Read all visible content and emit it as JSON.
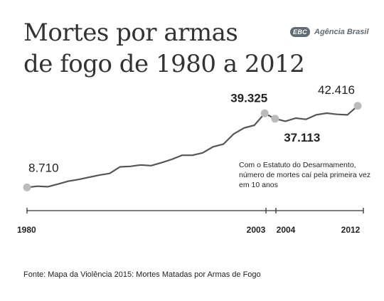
{
  "header": {
    "title_line1": "Mortes por armas",
    "title_line2": "de fogo de 1980 a 2012"
  },
  "logo": {
    "mark": "EBC",
    "name": "Agência Brasil"
  },
  "colors": {
    "line": "#555555",
    "dot": "#bbbbbb",
    "axis": "#333333",
    "text": "#222222",
    "logo": "#5f6b75"
  },
  "chart_data": {
    "type": "line",
    "title": "Mortes por armas de fogo de 1980 a 2012",
    "x": [
      1980,
      1981,
      1982,
      1983,
      1984,
      1985,
      1986,
      1987,
      1988,
      1989,
      1990,
      1991,
      1992,
      1993,
      1994,
      1995,
      1996,
      1997,
      1998,
      1999,
      2000,
      2001,
      2002,
      2003,
      2004,
      2005,
      2006,
      2007,
      2008,
      2009,
      2010,
      2011,
      2012
    ],
    "y": [
      8710,
      9200,
      9000,
      10100,
      11300,
      12000,
      12900,
      13800,
      14500,
      17200,
      17400,
      18000,
      17700,
      18900,
      20300,
      22000,
      22000,
      23000,
      25500,
      26600,
      30800,
      33300,
      34400,
      39325,
      37113,
      36060,
      37360,
      36840,
      38750,
      39400,
      38900,
      38700,
      42416
    ],
    "xlim": [
      1980,
      2012
    ],
    "ylim": [
      0,
      45000
    ],
    "y_axis": "hidden",
    "grid": false,
    "x_ticks": [
      1980,
      2003,
      2004,
      2012
    ],
    "highlighted_points": [
      {
        "x": 1980,
        "label": "8.710",
        "bold": false
      },
      {
        "x": 2003,
        "label": "39.325",
        "bold": true
      },
      {
        "x": 2004,
        "label": "37.113",
        "bold": true
      },
      {
        "x": 2012,
        "label": "42.416",
        "bold": false
      }
    ],
    "annotation": "Com o Estatuto do Desarmamento, número de mortes caí pela primeira vez em 10 anos"
  },
  "footer": {
    "source": "Fonte: Mapa da Violência 2015:  Mortes Matadas por Armas de Fogo"
  }
}
